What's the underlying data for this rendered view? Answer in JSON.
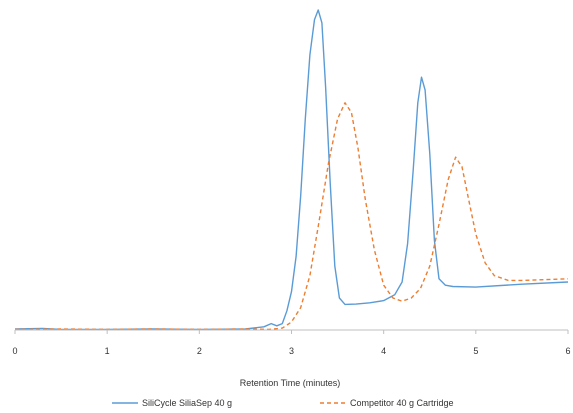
{
  "chart_data": {
    "type": "line",
    "xlabel": "Retention Time (minutes)",
    "ylabel": "",
    "title": "",
    "xlim": [
      0,
      6
    ],
    "ylim": [
      0,
      100
    ],
    "x_ticks": [
      "0",
      "1",
      "2",
      "3",
      "4",
      "5",
      "6"
    ],
    "grid": false,
    "legend_position": "bottom",
    "series": [
      {
        "name": "SiliCycle SiliaSep 40 g",
        "color": "#5b9bd5",
        "dash": "solid",
        "points": [
          [
            0,
            0.3
          ],
          [
            0.3,
            0.5
          ],
          [
            0.5,
            0.2
          ],
          [
            1.0,
            0.2
          ],
          [
            1.5,
            0.3
          ],
          [
            2.0,
            0.2
          ],
          [
            2.5,
            0.3
          ],
          [
            2.7,
            1.0
          ],
          [
            2.78,
            2.0
          ],
          [
            2.84,
            1.3
          ],
          [
            2.9,
            2.0
          ],
          [
            2.95,
            6.0
          ],
          [
            3.0,
            12.0
          ],
          [
            3.05,
            23.0
          ],
          [
            3.1,
            42.0
          ],
          [
            3.15,
            66.0
          ],
          [
            3.2,
            86.0
          ],
          [
            3.25,
            97.0
          ],
          [
            3.29,
            100.0
          ],
          [
            3.33,
            96.0
          ],
          [
            3.37,
            76.0
          ],
          [
            3.42,
            46.0
          ],
          [
            3.47,
            20.0
          ],
          [
            3.52,
            10.0
          ],
          [
            3.58,
            8.0
          ],
          [
            3.7,
            8.1
          ],
          [
            3.85,
            8.5
          ],
          [
            4.0,
            9.2
          ],
          [
            4.12,
            11.0
          ],
          [
            4.2,
            15.0
          ],
          [
            4.26,
            27.0
          ],
          [
            4.32,
            50.0
          ],
          [
            4.37,
            71.0
          ],
          [
            4.41,
            79.0
          ],
          [
            4.45,
            75.0
          ],
          [
            4.5,
            55.0
          ],
          [
            4.55,
            28.0
          ],
          [
            4.6,
            16.0
          ],
          [
            4.67,
            14.0
          ],
          [
            4.75,
            13.6
          ],
          [
            5.0,
            13.4
          ],
          [
            5.5,
            14.3
          ],
          [
            6.0,
            15.0
          ]
        ]
      },
      {
        "name": "Competitor 40 g Cartridge",
        "color": "#ed7d31",
        "dash": "dashed",
        "points": [
          [
            0,
            0.2
          ],
          [
            0.5,
            0.3
          ],
          [
            1.0,
            0.2
          ],
          [
            1.5,
            0.3
          ],
          [
            2.0,
            0.2
          ],
          [
            2.5,
            0.3
          ],
          [
            2.75,
            0.2
          ],
          [
            2.9,
            0.6
          ],
          [
            3.0,
            2.5
          ],
          [
            3.1,
            7.0
          ],
          [
            3.2,
            17.0
          ],
          [
            3.3,
            34.0
          ],
          [
            3.4,
            52.0
          ],
          [
            3.5,
            66.0
          ],
          [
            3.58,
            71.0
          ],
          [
            3.65,
            68.0
          ],
          [
            3.72,
            57.0
          ],
          [
            3.8,
            41.0
          ],
          [
            3.9,
            25.0
          ],
          [
            4.0,
            14.0
          ],
          [
            4.1,
            10.0
          ],
          [
            4.2,
            9.0
          ],
          [
            4.3,
            10.0
          ],
          [
            4.4,
            13.0
          ],
          [
            4.5,
            20.0
          ],
          [
            4.6,
            33.0
          ],
          [
            4.7,
            47.0
          ],
          [
            4.78,
            54.0
          ],
          [
            4.85,
            51.0
          ],
          [
            4.92,
            41.0
          ],
          [
            5.0,
            30.0
          ],
          [
            5.1,
            21.0
          ],
          [
            5.2,
            17.0
          ],
          [
            5.35,
            15.5
          ],
          [
            5.5,
            15.5
          ],
          [
            6.0,
            16.0
          ]
        ]
      }
    ]
  }
}
